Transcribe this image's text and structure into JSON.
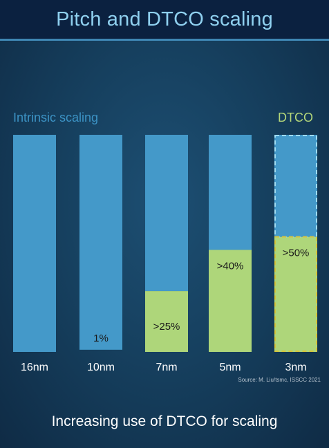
{
  "header": {
    "title": "Pitch and DTCO scaling"
  },
  "legend": {
    "intrinsic": "Intrinsic scaling",
    "dtco": "DTCO"
  },
  "source": "Source: M. Liu/tsmc, ISSCC 2021",
  "caption": "Increasing use of DTCO for scaling",
  "colors": {
    "intrinsic": "#4499c9",
    "dtco": "#aed67a",
    "dtco_border": "#d6c53a",
    "intrinsic_dashed_border": "#9fdcf2",
    "background": "#16405f",
    "title_bar": "#0b2140"
  },
  "chart_data": {
    "type": "bar",
    "stacked": true,
    "normalized": true,
    "categories": [
      "16nm",
      "10nm",
      "7nm",
      "5nm",
      "3nm"
    ],
    "series": [
      {
        "name": "Intrinsic scaling",
        "values": [
          100,
          99,
          72,
          53,
          47
        ]
      },
      {
        "name": "DTCO",
        "values": [
          0,
          1,
          28,
          47,
          53
        ]
      }
    ],
    "data_labels": [
      "",
      "1%",
      ">25%",
      ">40%",
      ">50%"
    ],
    "dashed_outline_categories": [
      "3nm"
    ],
    "ylim": [
      0,
      100
    ],
    "grid": false,
    "legend_placement": "top"
  }
}
